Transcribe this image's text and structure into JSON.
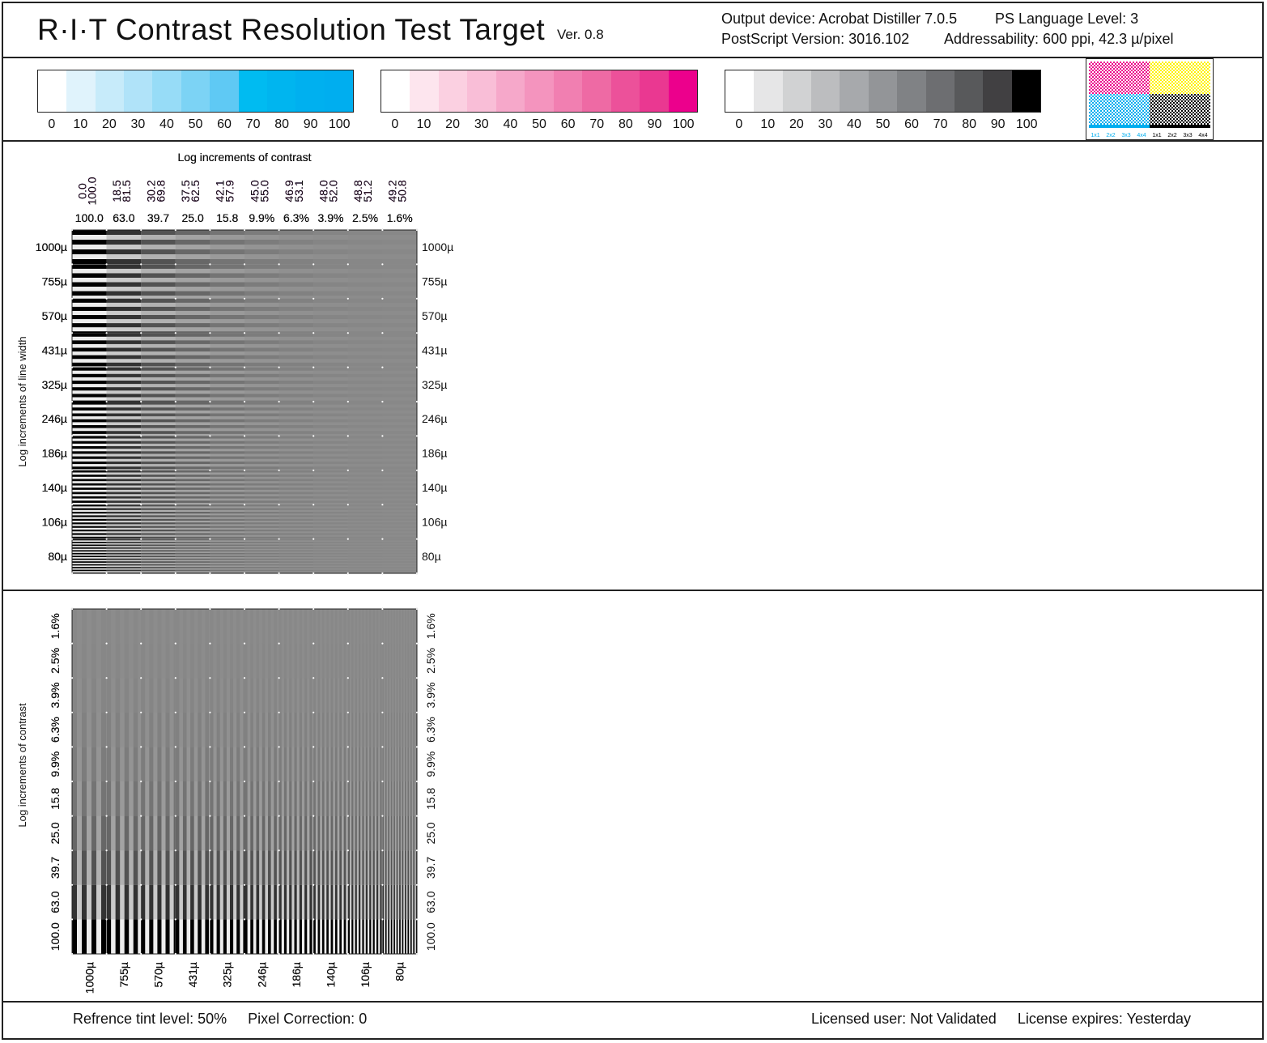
{
  "header": {
    "title": "R·I·T  Contrast Resolution Test Target",
    "version": "Ver. 0.8",
    "output_device": "Output device: Acrobat Distiller 7.0.5",
    "ps_language": "PS Language Level: 3",
    "ps_version": "PostScript Version: 3016.102",
    "addressability": "Addressability: 600 ppi, 42.3 µ/pixel"
  },
  "colors": {
    "cyan": "#00aeef",
    "magenta": "#ec008c",
    "black": "#000000",
    "cyan_bg": "#6dcff6",
    "magenta_bg": "#f49ac1",
    "gray_bg": "#8a8a8a"
  },
  "wedges": {
    "labels": [
      "0",
      "10",
      "20",
      "30",
      "40",
      "50",
      "60",
      "70",
      "80",
      "90",
      "100"
    ],
    "cyan": [
      "#ffffff",
      "#e0f3fc",
      "#c7ebfa",
      "#b0e3f9",
      "#97dcf7",
      "#7cd3f5",
      "#5fc9f4",
      "#00bbf1",
      "#00b5ef",
      "#00b0ef",
      "#00aeef"
    ],
    "magenta": [
      "#ffffff",
      "#fde5ee",
      "#fbd0e1",
      "#f9bed7",
      "#f6a8ca",
      "#f494be",
      "#f17fb1",
      "#ee6aa4",
      "#ec519a",
      "#ea3891",
      "#ec008c"
    ],
    "gray": [
      "#ffffff",
      "#e6e6e7",
      "#d1d2d3",
      "#bcbdbf",
      "#a7a9ac",
      "#939598",
      "#808285",
      "#6d6e71",
      "#58595b",
      "#414042",
      "#000000"
    ]
  },
  "thumbnail": {
    "cyan_labels": [
      "1x1",
      "2x2",
      "3x3",
      "4x4"
    ],
    "black_labels": [
      "1x1",
      "2x2",
      "3x3",
      "4x4"
    ]
  },
  "top_panels": {
    "contrast_label": "Log increments of contrast",
    "line_width_label": "Log increments of line width",
    "pair_top": [
      "0.0",
      "18.5",
      "30.2",
      "37.5",
      "42.1",
      "45.0",
      "46.9",
      "48.0",
      "48.8",
      "49.2"
    ],
    "pair_bottom": [
      "100.0",
      "81.5",
      "69.8",
      "62.5",
      "57.9",
      "55.0",
      "53.1",
      "52.0",
      "51.2",
      "50.8"
    ],
    "contrasts": [
      "100.0",
      "63.0",
      "39.7",
      "25.0",
      "15.8",
      "9.9%",
      "6.3%",
      "3.9%",
      "2.5%",
      "1.6%"
    ],
    "widths": [
      "1000µ",
      "755µ",
      "570µ",
      "431µ",
      "325µ",
      "246µ",
      "186µ",
      "140µ",
      "106µ",
      "80µ"
    ]
  },
  "bottom_panels": {
    "contrast_label": "Log increments of contrast",
    "contrasts_top_to_bottom": [
      "1.6%",
      "2.5%",
      "3.9%",
      "6.3%",
      "9.9%",
      "15.8",
      "25.0",
      "39.7",
      "63.0",
      "100.0"
    ],
    "widths": [
      "1000µ",
      "755µ",
      "570µ",
      "431µ",
      "325µ",
      "246µ",
      "186µ",
      "140µ",
      "106µ",
      "80µ"
    ]
  },
  "footer": {
    "tint": "Refrence tint level: 50%",
    "pixel_correction": "Pixel Correction: 0",
    "licensed_user": "Licensed user: Not Validated",
    "license_expires": "License expires: Yesterday"
  }
}
